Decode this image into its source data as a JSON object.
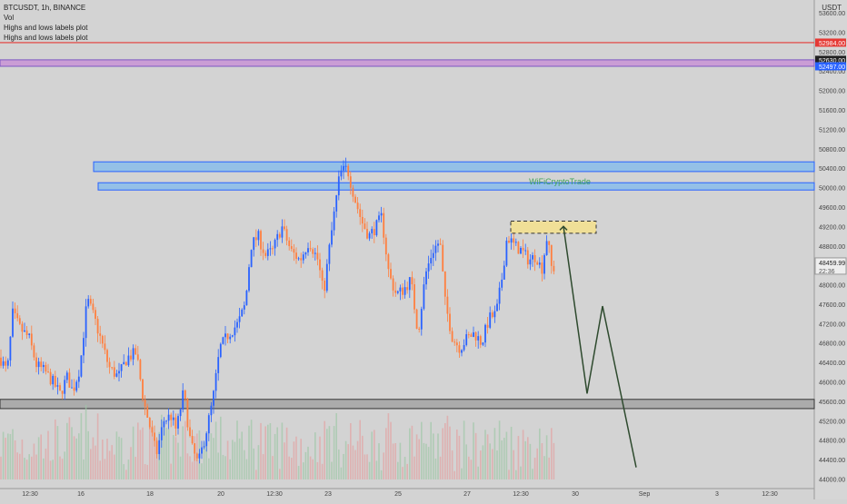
{
  "header": {
    "symbol_line": "BTCUSDT, 1h, BINANCE",
    "indicators": [
      "Vol",
      "Highs and lows labels plot",
      "Highs and lows labels plot"
    ],
    "currency": "USDT"
  },
  "watermark": "WiFiCryptoTrade",
  "chart_data": {
    "type": "candlestick",
    "ylim": [
      43900,
      53700
    ],
    "y_ticks": [
      53600,
      53200,
      52800,
      52400,
      52000,
      51600,
      51200,
      50800,
      50400,
      50000,
      49600,
      49200,
      48800,
      48400,
      48000,
      47600,
      47200,
      46800,
      46400,
      46000,
      45600,
      45200,
      44800,
      44400,
      44000
    ],
    "y_tick_labels": [
      "53600.00",
      "53200.00",
      "52800.00",
      "52400.00",
      "52000.00",
      "51600.00",
      "51200.00",
      "50800.00",
      "50400.00",
      "50000.00",
      "49600.00",
      "49200.00",
      "48800.00",
      "48400.00",
      "48000.00",
      "47600.00",
      "47200.00",
      "46800.00",
      "46400.00",
      "46000.00",
      "45600.00",
      "45200.00",
      "44800.00",
      "44400.00",
      "44000.00"
    ],
    "x_tick_labels": [
      "12:30",
      "16",
      "18",
      "20",
      "12:30",
      "23",
      "25",
      "27",
      "12:30",
      "30",
      "Sep",
      "3",
      "12:30"
    ],
    "price_labels": [
      {
        "value": 52984,
        "text": "52984.00",
        "color": "#e53935"
      },
      {
        "value": 52630,
        "text": "52630.00",
        "color": "#222222"
      },
      {
        "value": 52497,
        "text": "52497.00",
        "color": "#2962ff"
      },
      {
        "value": 48459.99,
        "text": "48459.99",
        "color": "#ffffff",
        "subtext": "22:36"
      }
    ],
    "horizontal_levels": [
      {
        "name": "red-resistance-line",
        "value": 52984,
        "color": "#e53935"
      },
      {
        "name": "purple-supply-zone",
        "from": 52497,
        "to": 52630,
        "color": "#c78bd6"
      },
      {
        "name": "blue-zone-upper",
        "from": 50330,
        "to": 50530,
        "color": "#7fb9ee"
      },
      {
        "name": "blue-zone-lower",
        "from": 49950,
        "to": 50100,
        "color": "#7fb9ee"
      },
      {
        "name": "gray-support-zone",
        "from": 45450,
        "to": 45640,
        "color": "#9e9e9e"
      }
    ],
    "yellow_zone": {
      "from": 49060,
      "to": 49310,
      "color": "#f5e08c"
    },
    "projection_path": [
      49200,
      45760,
      47560,
      44240
    ],
    "colors": {
      "up": "#2962ff",
      "down": "#ff7f3f",
      "volume_up": "#9fc7a8",
      "volume_down": "#e3a3a3"
    }
  }
}
